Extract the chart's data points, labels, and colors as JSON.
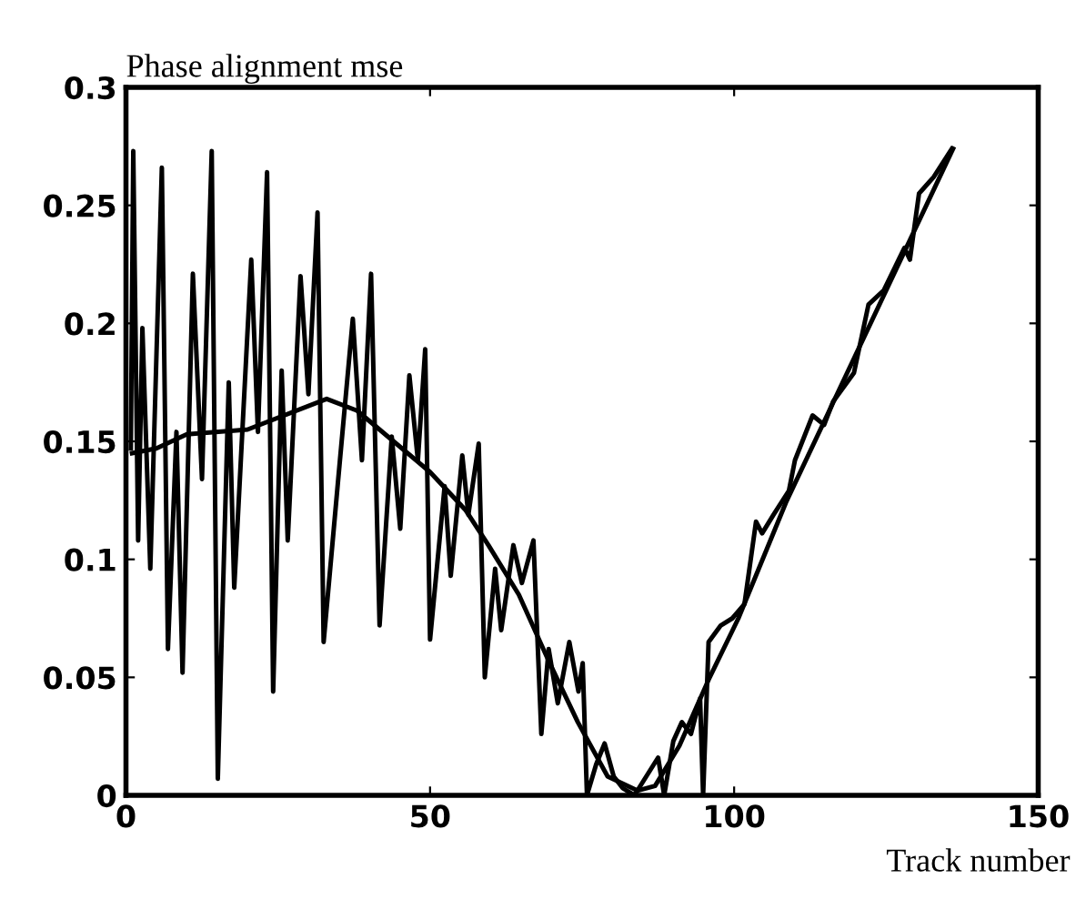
{
  "chart_data": {
    "type": "line",
    "ylabel": "Phase alignment mse",
    "xlabel": "Track number",
    "xlim": [
      0,
      150
    ],
    "ylim": [
      0,
      0.3
    ],
    "xticks": [
      0,
      50,
      100,
      150
    ],
    "yticks": [
      0,
      0.05,
      0.1,
      0.15,
      0.2,
      0.25,
      0.3
    ],
    "grid": false,
    "marker": "none",
    "line_style": "solid",
    "series": [
      {
        "color": "#000000",
        "x": [
          0.8,
          1.2,
          2.0,
          2.7,
          4.0,
          5.9,
          6.9,
          8.3,
          9.3,
          11.0,
          12.5,
          14.1,
          15.1,
          16.9,
          17.8,
          20.6,
          21.7,
          23.2,
          24.2,
          25.6,
          26.6,
          28.7,
          30.0,
          31.5,
          32.5,
          34.9,
          37.3,
          38.8,
          40.3,
          41.7,
          43.7,
          45.1,
          46.6,
          48.0,
          49.2,
          50.0,
          52.4,
          53.4,
          55.3,
          56.3,
          58.0,
          59.0,
          60.7,
          61.7,
          63.7,
          65.1,
          67.0,
          68.3,
          69.5,
          71.0,
          72.9,
          74.4,
          75.1,
          75.8,
          77.3,
          78.7,
          80.2,
          81.7,
          83.6,
          87.5,
          88.5,
          90.0,
          91.4,
          92.9,
          94.4,
          94.9,
          95.8,
          97.8,
          99.7,
          101.7,
          103.6,
          104.6,
          106.5,
          109.0,
          110.0,
          112.9,
          114.8,
          116.3,
          119.7,
          122.1,
          124.6,
          128.0,
          128.9,
          130.4,
          132.8,
          135.8
        ],
        "values": [
          0.147,
          0.273,
          0.108,
          0.198,
          0.096,
          0.266,
          0.062,
          0.154,
          0.052,
          0.221,
          0.134,
          0.273,
          0.007,
          0.175,
          0.088,
          0.227,
          0.154,
          0.264,
          0.044,
          0.18,
          0.108,
          0.22,
          0.17,
          0.247,
          0.065,
          0.134,
          0.202,
          0.142,
          0.221,
          0.072,
          0.152,
          0.113,
          0.178,
          0.142,
          0.189,
          0.066,
          0.131,
          0.093,
          0.144,
          0.119,
          0.149,
          0.05,
          0.096,
          0.07,
          0.106,
          0.09,
          0.108,
          0.026,
          0.062,
          0.039,
          0.065,
          0.044,
          0.056,
          0,
          0.013,
          0.022,
          0.008,
          0.003,
          0,
          0.016,
          0,
          0.023,
          0.031,
          0.026,
          0.041,
          0,
          0.065,
          0.072,
          0.075,
          0.081,
          0.116,
          0.111,
          0.119,
          0.129,
          0.142,
          0.161,
          0.157,
          0.167,
          0.179,
          0.208,
          0.214,
          0.232,
          0.227,
          0.255,
          0.262,
          0.274
        ]
      },
      {
        "color": "#000000",
        "x": [
          1,
          5,
          10,
          20,
          33,
          38,
          44,
          50,
          55.8,
          59.6,
          64.6,
          69.5,
          74.3,
          79.2,
          84.1,
          87,
          91,
          95.8,
          100.7,
          108.5,
          136
        ],
        "values": [
          0.145,
          0.147,
          0.153,
          0.155,
          0.168,
          0.163,
          0.15,
          0.137,
          0.121,
          0.106,
          0.085,
          0.057,
          0.031,
          0.008,
          0.002,
          0.004,
          0.021,
          0.049,
          0.075,
          0.124,
          0.274
        ]
      }
    ]
  }
}
